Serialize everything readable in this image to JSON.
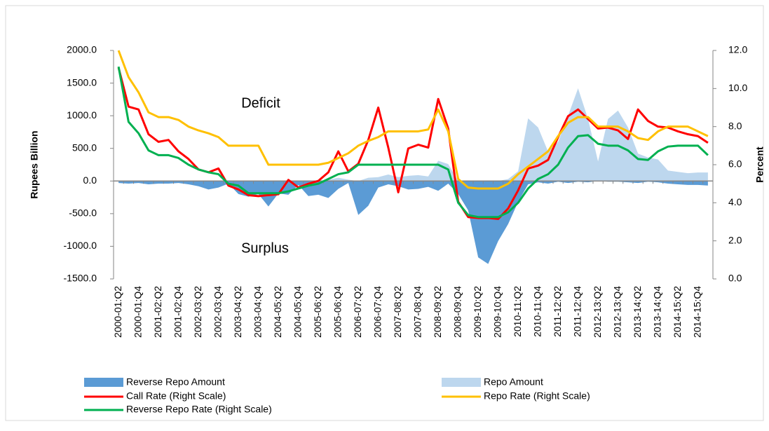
{
  "chart_data": {
    "type": "line",
    "annotations": [
      "Deficit",
      "Surplus"
    ],
    "ylabel": "Rupees Billion",
    "y2label": "Percent",
    "categories": [
      "2000-01:Q2",
      null,
      "2000-01:Q4",
      null,
      "2001-02:Q2",
      null,
      "2001-02:Q4",
      null,
      "2002-03:Q2",
      null,
      "2002-03:Q4",
      null,
      "2003-04:Q2",
      null,
      "2003-04:Q4",
      null,
      "2004-05:Q2",
      null,
      "2004-05:Q4",
      null,
      "2005-06:Q2",
      null,
      "2005-06:Q4",
      null,
      "2006-07:Q2",
      null,
      "2006-07:Q4",
      null,
      "2007-08:Q2",
      null,
      "2007-08:Q4",
      null,
      "2008-09:Q2",
      null,
      "2008-09:Q4",
      null,
      "2009-10:Q2",
      null,
      "2009-10:Q4",
      null,
      "2010-11:Q2",
      null,
      "2010-11:Q4",
      null,
      "2011-12:Q2",
      null,
      "2011-12:Q4",
      null,
      "2012-13:Q2",
      null,
      "2012-13:Q4",
      null,
      "2013-14:Q2",
      null,
      "2013-14:Q4",
      null,
      "2014-15:Q2",
      null,
      "2014-15:Q4",
      null
    ],
    "ylim": [
      -1500,
      2000
    ],
    "yticks": [
      {
        "value": -1500,
        "label": "-1500.0"
      },
      {
        "value": -1000,
        "label": "-1000.0"
      },
      {
        "value": -500,
        "label": "-500.0"
      },
      {
        "value": 0,
        "label": "0.0"
      },
      {
        "value": 500,
        "label": "500.0"
      },
      {
        "value": 1000,
        "label": "1000.0"
      },
      {
        "value": 1500,
        "label": "1500.0"
      },
      {
        "value": 2000,
        "label": "2000.0"
      }
    ],
    "y2lim": [
      0,
      12
    ],
    "y2ticks": [
      {
        "value": 0,
        "label": "0.0"
      },
      {
        "value": 2,
        "label": "2.0"
      },
      {
        "value": 4,
        "label": "4.0"
      },
      {
        "value": 6,
        "label": "6.0"
      },
      {
        "value": 8,
        "label": "8.0"
      },
      {
        "value": 10,
        "label": "10.0"
      },
      {
        "value": 12,
        "label": "12.0"
      }
    ],
    "series": [
      {
        "name": "Repo Amount",
        "type": "area",
        "color": "#bdd7ee",
        "values": [
          0,
          0,
          0,
          0,
          0,
          0,
          0,
          0,
          0,
          0,
          0,
          0,
          0,
          0,
          0,
          0,
          0,
          0,
          0,
          0,
          0,
          20,
          50,
          20,
          0,
          50,
          60,
          100,
          60,
          80,
          90,
          70,
          310,
          260,
          0,
          0,
          0,
          0,
          0,
          30,
          150,
          960,
          820,
          450,
          600,
          1000,
          1420,
          950,
          300,
          950,
          1080,
          820,
          420,
          360,
          330,
          160,
          140,
          120,
          130,
          130
        ]
      },
      {
        "name": "Reverse Repo Amount",
        "type": "area",
        "color": "#5b9bd5",
        "values": [
          -30,
          -40,
          -30,
          -50,
          -40,
          -40,
          -30,
          -50,
          -80,
          -130,
          -100,
          -40,
          -200,
          -240,
          -200,
          -390,
          -190,
          -210,
          -60,
          -230,
          -210,
          -260,
          -120,
          -30,
          -520,
          -380,
          -100,
          -50,
          -80,
          -130,
          -120,
          -90,
          -150,
          -40,
          -200,
          -450,
          -1170,
          -1270,
          -920,
          -660,
          -320,
          -50,
          -20,
          -40,
          -10,
          -30,
          -10,
          -20,
          0,
          -10,
          -10,
          -20,
          -30,
          -10,
          -20,
          -40,
          -50,
          -60,
          -60,
          -70
        ]
      },
      {
        "name": "Call Rate (Right Scale)",
        "type": "line",
        "axis": "y2",
        "color": "#ff0000",
        "values": [
          11.1,
          9.05,
          8.9,
          7.6,
          7.2,
          7.3,
          6.7,
          6.3,
          5.75,
          5.6,
          5.8,
          4.9,
          4.7,
          4.4,
          4.35,
          4.4,
          4.45,
          5.2,
          4.8,
          5.0,
          5.15,
          5.6,
          6.7,
          5.65,
          6.05,
          7.3,
          9.0,
          6.9,
          4.55,
          6.85,
          7.05,
          6.9,
          9.45,
          7.9,
          4.05,
          3.25,
          3.2,
          3.2,
          3.15,
          3.7,
          4.65,
          5.8,
          5.95,
          6.25,
          7.45,
          8.55,
          8.9,
          8.4,
          7.9,
          7.95,
          7.8,
          7.35,
          8.9,
          8.3,
          8.0,
          7.95,
          7.75,
          7.6,
          7.5,
          7.15
        ]
      },
      {
        "name": "Repo Rate (Right Scale)",
        "type": "line",
        "axis": "y2",
        "color": "#ffc000",
        "values": [
          12.0,
          10.6,
          9.8,
          8.75,
          8.5,
          8.5,
          8.35,
          8.0,
          7.8,
          7.65,
          7.45,
          7.0,
          7.0,
          7.0,
          7.0,
          6.0,
          6.0,
          6.0,
          6.0,
          6.0,
          6.0,
          6.1,
          6.35,
          6.6,
          7.0,
          7.25,
          7.45,
          7.75,
          7.75,
          7.75,
          7.75,
          7.85,
          8.9,
          7.75,
          5.25,
          4.8,
          4.75,
          4.75,
          4.75,
          5.0,
          5.5,
          5.9,
          6.3,
          6.7,
          7.5,
          8.2,
          8.5,
          8.5,
          8.0,
          8.0,
          8.0,
          7.75,
          7.4,
          7.3,
          7.75,
          8.0,
          8.0,
          8.0,
          7.75,
          7.5
        ]
      },
      {
        "name": "Reverse Repo Rate (Right Scale)",
        "type": "line",
        "axis": "y2",
        "color": "#00b050",
        "values": [
          11.15,
          8.25,
          7.65,
          6.75,
          6.5,
          6.5,
          6.35,
          6.0,
          5.75,
          5.6,
          5.5,
          5.0,
          4.9,
          4.5,
          4.5,
          4.5,
          4.5,
          4.6,
          4.75,
          4.9,
          5.0,
          5.25,
          5.5,
          5.6,
          6.0,
          6.0,
          6.0,
          6.0,
          6.0,
          6.0,
          6.0,
          6.0,
          6.0,
          5.75,
          4.0,
          3.35,
          3.25,
          3.25,
          3.25,
          3.5,
          4.0,
          4.75,
          5.25,
          5.5,
          6.0,
          6.9,
          7.5,
          7.55,
          7.1,
          7.0,
          7.0,
          6.75,
          6.3,
          6.25,
          6.7,
          6.95,
          7.0,
          7.0,
          7.0,
          6.5
        ]
      }
    ]
  }
}
